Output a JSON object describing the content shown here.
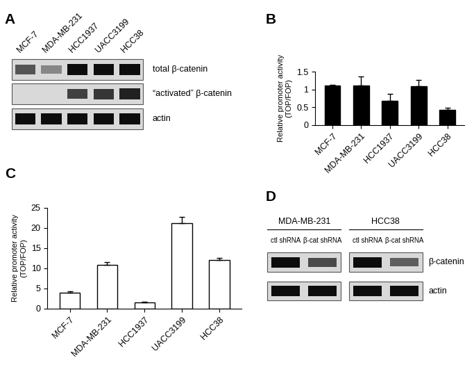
{
  "panel_labels": [
    "A",
    "B",
    "C",
    "D"
  ],
  "chart_data": [
    {
      "type": "bar",
      "panel": "B",
      "categories": [
        "MCF-7",
        "MDA-MB-231",
        "HCC1937",
        "UACC3199",
        "HCC38"
      ],
      "values": [
        1.1,
        1.1,
        0.68,
        1.09,
        0.42
      ],
      "errors": [
        0.03,
        0.27,
        0.19,
        0.18,
        0.07
      ],
      "y_label": "Relative promoter activity\n(TOP/FOP)",
      "color": "#000000",
      "ylim": [
        0,
        1.5
      ],
      "yticks": [
        0,
        0.5,
        1,
        1.5
      ]
    },
    {
      "type": "bar",
      "panel": "C",
      "categories": [
        "MCF-7",
        "MDA-MB-231",
        "HCC1937",
        "UACC3199",
        "HCC38"
      ],
      "values": [
        4.0,
        10.9,
        1.6,
        21.2,
        12.1
      ],
      "errors": [
        0.3,
        0.6,
        0.05,
        1.5,
        0.4
      ],
      "y_label": "Relative promoter activity\n(TOP/FOP)",
      "color": "#ffffff",
      "ylim": [
        0,
        25
      ],
      "yticks": [
        0,
        5,
        10,
        15,
        20,
        25
      ]
    }
  ],
  "blots": [
    {
      "panel": "A",
      "groups": [
        {
          "name": null,
          "lanes": [
            "MCF-7",
            "MDA-MB-231",
            "HCC1937",
            "UACC3199",
            "HCC38"
          ]
        }
      ],
      "rows": [
        {
          "label": "total β-catenin",
          "band_intensity": [
            [
              0.65,
              0.4,
              1.0,
              1.0,
              1.0
            ]
          ]
        },
        {
          "label": "“activated” β-catenin",
          "band_intensity": [
            [
              0.0,
              0.0,
              0.75,
              0.8,
              0.9
            ]
          ]
        },
        {
          "label": "actin",
          "band_intensity": [
            [
              1.0,
              1.0,
              1.0,
              1.0,
              1.0
            ]
          ]
        }
      ]
    },
    {
      "panel": "D",
      "groups": [
        {
          "name": "MDA-MB-231",
          "lanes": [
            "ctl shRNA",
            "β-cat shRNA"
          ]
        },
        {
          "name": "HCC38",
          "lanes": [
            "ctl shRNA",
            "β-cat shRNA"
          ]
        }
      ],
      "rows": [
        {
          "label": "β-catenin",
          "band_intensity": [
            [
              1.0,
              0.7
            ],
            [
              1.0,
              0.6
            ]
          ]
        },
        {
          "label": "actin",
          "band_intensity": [
            [
              1.0,
              1.0
            ],
            [
              1.0,
              1.0
            ]
          ]
        }
      ]
    }
  ]
}
